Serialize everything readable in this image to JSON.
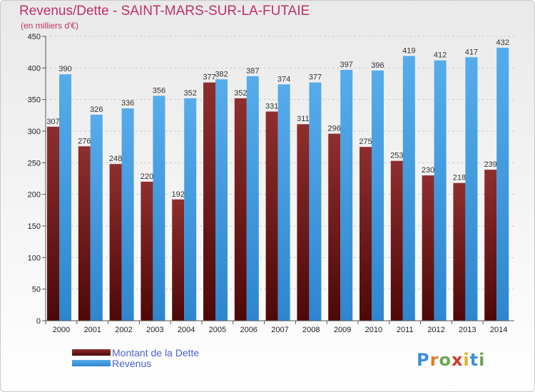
{
  "chart_data": {
    "type": "bar",
    "title": "Revenus/Dette - SAINT-MARS-SUR-LA-FUTAIE",
    "subtitle": "(en milliers d'€)",
    "categories": [
      "2000",
      "2001",
      "2002",
      "2003",
      "2004",
      "2005",
      "2006",
      "2007",
      "2008",
      "2009",
      "2010",
      "2011",
      "2012",
      "2013",
      "2014"
    ],
    "series": [
      {
        "name": "Montant de la Dette",
        "color": "#7b1c1c",
        "values": [
          307,
          276,
          248,
          220,
          192,
          377,
          352,
          331,
          311,
          296,
          275,
          253,
          230,
          218,
          239
        ]
      },
      {
        "name": "Revenus",
        "color": "#4aa3e8",
        "values": [
          390,
          326,
          336,
          356,
          352,
          382,
          387,
          374,
          377,
          397,
          396,
          419,
          412,
          417,
          432
        ]
      }
    ],
    "yticks": [
      0,
      50,
      100,
      150,
      200,
      250,
      300,
      350,
      400,
      450
    ],
    "ylim": [
      0,
      450
    ],
    "grid": true,
    "legend_position": "bottom-left"
  },
  "logo": {
    "letters": [
      "P",
      "r",
      "o",
      "x",
      "i",
      "t",
      "i"
    ],
    "colors": [
      "#3b8fd8",
      "#e07a2a",
      "#6aa84f",
      "#d03a2a",
      "#e0b020",
      "#3b8fd8",
      "#6aa84f"
    ]
  }
}
